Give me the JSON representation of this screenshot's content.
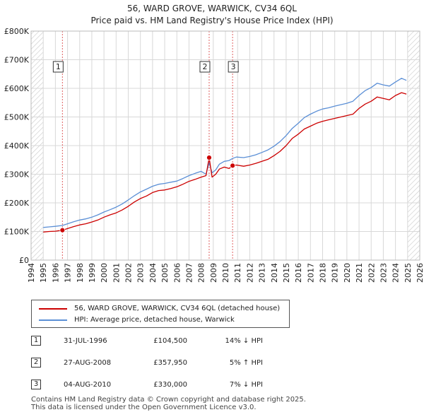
{
  "chart_data": {
    "type": "line",
    "title": "56, WARD GROVE, WARWICK, CV34 6QL",
    "subtitle": "Price paid vs. HM Land Registry's House Price Index (HPI)",
    "xlabel": "",
    "ylabel": "",
    "xlim": [
      1994,
      2026
    ],
    "ylim": [
      0,
      800000
    ],
    "x_ticks": [
      "1994",
      "1995",
      "1996",
      "1997",
      "1998",
      "1999",
      "2000",
      "2001",
      "2002",
      "2003",
      "2004",
      "2005",
      "2006",
      "2007",
      "2008",
      "2009",
      "2010",
      "2011",
      "2012",
      "2013",
      "2014",
      "2015",
      "2016",
      "2017",
      "2018",
      "2019",
      "2020",
      "2021",
      "2022",
      "2023",
      "2024",
      "2025",
      "2026"
    ],
    "y_ticks": [
      {
        "value": 0,
        "label": "£0"
      },
      {
        "value": 100000,
        "label": "£100K"
      },
      {
        "value": 200000,
        "label": "£200K"
      },
      {
        "value": 300000,
        "label": "£300K"
      },
      {
        "value": 400000,
        "label": "£400K"
      },
      {
        "value": 500000,
        "label": "£500K"
      },
      {
        "value": 600000,
        "label": "£600K"
      },
      {
        "value": 700000,
        "label": "£700K"
      },
      {
        "value": 800000,
        "label": "£800K"
      }
    ],
    "grid": true,
    "data_window": [
      1995.0,
      2025.0
    ],
    "series": [
      {
        "name": "56, WARD GROVE, WARWICK, CV34 6QL (detached house)",
        "color": "#cc0000",
        "x": [
          1995.0,
          1995.5,
          1996.0,
          1996.58,
          1997.0,
          1997.5,
          1998.0,
          1998.5,
          1999.0,
          1999.5,
          2000.0,
          2000.5,
          2001.0,
          2001.5,
          2002.0,
          2002.5,
          2003.0,
          2003.5,
          2004.0,
          2004.5,
          2005.0,
          2005.5,
          2006.0,
          2006.5,
          2007.0,
          2007.5,
          2008.0,
          2008.4,
          2008.66,
          2008.9,
          2009.2,
          2009.5,
          2009.9,
          2010.3,
          2010.59,
          2010.9,
          2011.5,
          2012.0,
          2012.5,
          2013.0,
          2013.5,
          2014.0,
          2014.5,
          2015.0,
          2015.5,
          2016.0,
          2016.5,
          2017.0,
          2017.5,
          2018.0,
          2018.5,
          2019.0,
          2019.5,
          2020.0,
          2020.5,
          2021.0,
          2021.5,
          2022.0,
          2022.5,
          2023.0,
          2023.5,
          2024.0,
          2024.5,
          2024.9
        ],
        "y": [
          98000,
          100000,
          101000,
          104500,
          110000,
          117000,
          123000,
          127000,
          133000,
          140000,
          150000,
          158000,
          165000,
          175000,
          188000,
          203000,
          215000,
          224000,
          236000,
          243000,
          245000,
          250000,
          256000,
          265000,
          275000,
          282000,
          290000,
          295000,
          357950,
          290000,
          300000,
          318000,
          325000,
          320000,
          330000,
          332000,
          328000,
          332000,
          338000,
          345000,
          352000,
          365000,
          380000,
          400000,
          425000,
          440000,
          458000,
          468000,
          478000,
          485000,
          490000,
          495000,
          500000,
          505000,
          510000,
          530000,
          545000,
          555000,
          570000,
          565000,
          560000,
          575000,
          585000,
          580000
        ]
      },
      {
        "name": "HPI: Average price, detached house, Warwick",
        "color": "#5b8fd6",
        "x": [
          1995.0,
          1995.5,
          1996.0,
          1996.58,
          1997.0,
          1997.5,
          1998.0,
          1998.5,
          1999.0,
          1999.5,
          2000.0,
          2000.5,
          2001.0,
          2001.5,
          2002.0,
          2002.5,
          2003.0,
          2003.5,
          2004.0,
          2004.5,
          2005.0,
          2005.5,
          2006.0,
          2006.5,
          2007.0,
          2007.5,
          2008.0,
          2008.4,
          2008.66,
          2008.9,
          2009.2,
          2009.5,
          2009.9,
          2010.3,
          2010.59,
          2010.9,
          2011.5,
          2012.0,
          2012.5,
          2013.0,
          2013.5,
          2014.0,
          2014.5,
          2015.0,
          2015.5,
          2016.0,
          2016.5,
          2017.0,
          2017.5,
          2018.0,
          2018.5,
          2019.0,
          2019.5,
          2020.0,
          2020.5,
          2021.0,
          2021.5,
          2022.0,
          2022.5,
          2023.0,
          2023.5,
          2024.0,
          2024.5,
          2024.9
        ],
        "y": [
          114000,
          116000,
          118000,
          121000,
          127000,
          134000,
          140000,
          144000,
          150000,
          158000,
          168000,
          176000,
          185000,
          196000,
          210000,
          225000,
          238000,
          248000,
          258000,
          265000,
          268000,
          272000,
          276000,
          285000,
          295000,
          303000,
          310000,
          300000,
          340000,
          305000,
          315000,
          335000,
          345000,
          348000,
          355000,
          360000,
          358000,
          362000,
          368000,
          376000,
          385000,
          398000,
          414000,
          435000,
          460000,
          478000,
          498000,
          510000,
          520000,
          528000,
          532000,
          538000,
          543000,
          548000,
          555000,
          575000,
          592000,
          603000,
          618000,
          612000,
          608000,
          622000,
          635000,
          628000
        ]
      }
    ],
    "annotations": [
      {
        "label": "1",
        "x": 1996.58,
        "y": 104500
      },
      {
        "label": "2",
        "x": 2008.66,
        "y": 357950
      },
      {
        "label": "3",
        "x": 2010.59,
        "y": 330000
      }
    ]
  },
  "legend": {
    "items": [
      {
        "label": "56, WARD GROVE, WARWICK, CV34 6QL (detached house)",
        "color": "#cc0000"
      },
      {
        "label": "HPI: Average price, detached house, Warwick",
        "color": "#5b8fd6"
      }
    ]
  },
  "transactions": [
    {
      "num": "1",
      "date": "31-JUL-1996",
      "price": "£104,500",
      "hpi": "14% ↓ HPI"
    },
    {
      "num": "2",
      "date": "27-AUG-2008",
      "price": "£357,950",
      "hpi": "5% ↑ HPI"
    },
    {
      "num": "3",
      "date": "04-AUG-2010",
      "price": "£330,000",
      "hpi": "7% ↓ HPI"
    }
  ],
  "footer": {
    "line1": "Contains HM Land Registry data © Crown copyright and database right 2025.",
    "line2": "This data is licensed under the Open Government Licence v3.0."
  },
  "colors": {
    "property": "#cc0000",
    "hpi": "#5b8fd6",
    "grid": "#d8d8d8",
    "marker_line": "#e06060",
    "hatch": "#cccccc"
  }
}
